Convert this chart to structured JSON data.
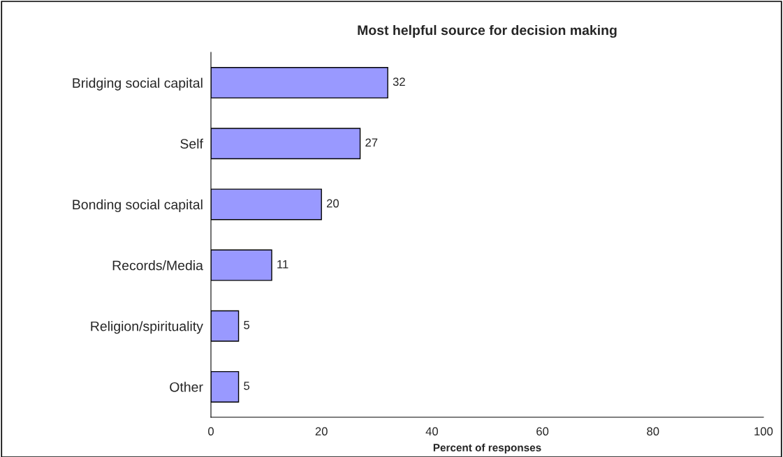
{
  "chart_data": {
    "type": "bar",
    "orientation": "horizontal",
    "title": "Most helpful source for decision making",
    "xlabel": "Percent of responses",
    "categories": [
      "Bridging social capital",
      "Self",
      "Bonding social capital",
      "Records/Media",
      "Religion/spirituality",
      "Other"
    ],
    "values": [
      32,
      27,
      20,
      11,
      5,
      5
    ],
    "color": "#9999ff",
    "xlim": [
      0,
      100
    ],
    "xticks": [
      0,
      20,
      40,
      60,
      80,
      100
    ],
    "data_labels": true,
    "grid": false,
    "legend": false
  }
}
